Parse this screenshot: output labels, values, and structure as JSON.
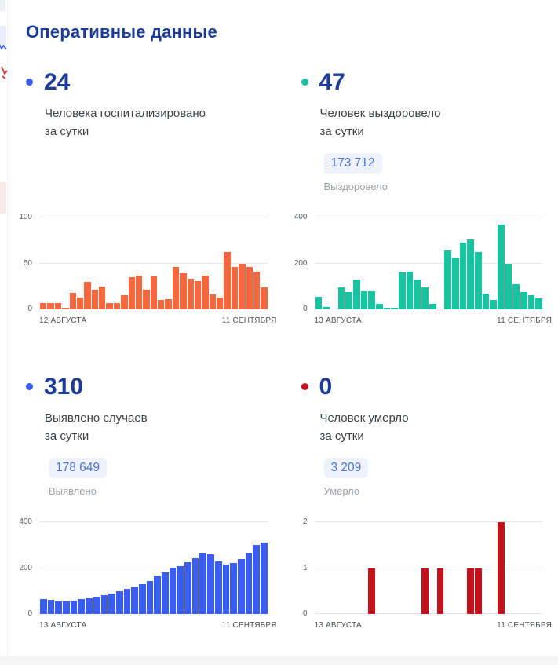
{
  "title": "Оперативные данные",
  "cards": [
    {
      "value": "24",
      "desc_line1": "Человека госпитализировано",
      "desc_line2": "за сутки",
      "dot_color": "#3b5ef1",
      "total": "",
      "total_label": ""
    },
    {
      "value": "47",
      "desc_line1": "Человек выздоровело",
      "desc_line2": "за сутки",
      "dot_color": "#17c3a0",
      "total": "173 712",
      "total_label": "Выздоровело"
    },
    {
      "value": "310",
      "desc_line1": "Выявлено случаев",
      "desc_line2": "за сутки",
      "dot_color": "#3b5ef1",
      "total": "178 649",
      "total_label": "Выявлено"
    },
    {
      "value": "0",
      "desc_line1": "Человек умерло",
      "desc_line2": "за сутки",
      "dot_color": "#c3121c",
      "total": "3 209",
      "total_label": "Умерло"
    }
  ],
  "chart_data": [
    {
      "type": "bar",
      "name": "Госпитализировано за сутки",
      "color": "#f4673f",
      "x_start_label": "12 АВГУСТА",
      "x_end_label": "11 СЕНТЯБРЯ",
      "ylim": [
        0,
        100
      ],
      "yticks": [
        0,
        50,
        100
      ],
      "grid": true,
      "values": [
        7,
        7,
        7,
        2,
        18,
        13,
        30,
        21,
        25,
        7,
        7,
        15,
        35,
        37,
        21,
        36,
        10,
        11,
        46,
        39,
        33,
        31,
        37,
        16,
        13,
        62,
        46,
        50,
        46,
        41,
        24
      ]
    },
    {
      "type": "bar",
      "name": "Выздоровело за сутки",
      "color": "#17c3a0",
      "x_start_label": "13 АВГУСТА",
      "x_end_label": "11 СЕНТЯБРЯ",
      "ylim": [
        0,
        400
      ],
      "yticks": [
        0,
        200,
        400
      ],
      "grid": true,
      "values": [
        55,
        10,
        0,
        95,
        75,
        130,
        80,
        78,
        25,
        6,
        6,
        160,
        165,
        130,
        95,
        25,
        0,
        257,
        226,
        291,
        306,
        251,
        69,
        40,
        370,
        197,
        110,
        74,
        63,
        47
      ]
    },
    {
      "type": "bar",
      "name": "Выявлено случаев за сутки",
      "color": "#3b5ef1",
      "x_start_label": "13 АВГУСТА",
      "x_end_label": "11 СЕНТЯБРЯ",
      "ylim": [
        0,
        400
      ],
      "yticks": [
        0,
        200,
        400
      ],
      "grid": true,
      "values": [
        66,
        61,
        54,
        56,
        58,
        64,
        70,
        76,
        82,
        90,
        98,
        108,
        118,
        130,
        143,
        163,
        182,
        201,
        209,
        224,
        244,
        267,
        259,
        229,
        217,
        221,
        238,
        267,
        300,
        310
      ]
    },
    {
      "type": "bar",
      "name": "Умерло за сутки",
      "color": "#c3121c",
      "x_start_label": "13 АВГУСТА",
      "x_end_label": "11 СЕНТЯБРЯ",
      "ylim": [
        0,
        2
      ],
      "yticks": [
        0,
        1,
        2
      ],
      "grid": true,
      "values": [
        0,
        0,
        0,
        0,
        0,
        0,
        0,
        1,
        0,
        0,
        0,
        0,
        0,
        0,
        1,
        0,
        1,
        0,
        0,
        0,
        1,
        1,
        0,
        0,
        2,
        0,
        0,
        0,
        0,
        0
      ]
    }
  ]
}
